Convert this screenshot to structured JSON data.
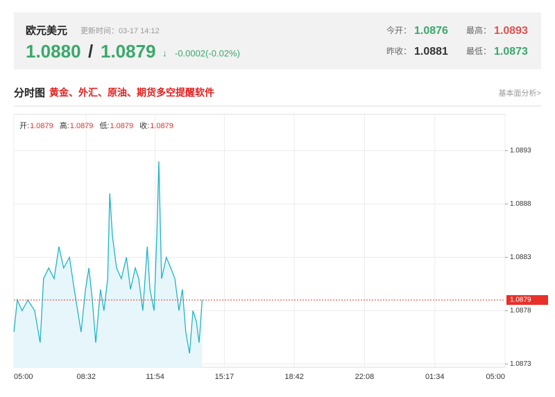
{
  "header": {
    "title": "欧元美元",
    "update_time": "更新时间：03-17 14:12",
    "bid": "1.0880",
    "separator": "/",
    "ask": "1.0879",
    "arrow": "↓",
    "change": "-0.0002(-0.02%)",
    "stats": [
      {
        "label": "今开：",
        "value": "1.0876"
      },
      {
        "label": "最高：",
        "value": "1.0893"
      },
      {
        "label": "昨收：",
        "value": "1.0881"
      },
      {
        "label": "最低：",
        "value": "1.0873"
      }
    ]
  },
  "section": {
    "tab": "分时图",
    "promo": "黄金、外汇、原油、期货多空提醒软件",
    "link": "基本面分析>"
  },
  "chart_data": {
    "type": "line",
    "ohlc": [
      {
        "label": "开:",
        "value": "1.0879"
      },
      {
        "label": "高:",
        "value": "1.0879"
      },
      {
        "label": "低:",
        "value": "1.0879"
      },
      {
        "label": "收:",
        "value": "1.0879"
      }
    ],
    "x": [
      0,
      10,
      24,
      41,
      61,
      77,
      87,
      102,
      118,
      132,
      146,
      163,
      177,
      187,
      197,
      210,
      220,
      230,
      240,
      254,
      264,
      275,
      281,
      289,
      301,
      315,
      330,
      342,
      356,
      366,
      378,
      391,
      399,
      411,
      419,
      425,
      433,
      447,
      460,
      472,
      484,
      494,
      504,
      515,
      525,
      535,
      543,
      552
    ],
    "series": [
      {
        "color": "#1fb3c8",
        "values": [
          1.0876,
          1.0879,
          1.0878,
          1.0879,
          1.0878,
          1.0875,
          1.0881,
          1.0882,
          1.0881,
          1.0884,
          1.0882,
          1.0883,
          1.088,
          1.0878,
          1.0876,
          1.088,
          1.0882,
          1.0879,
          1.0875,
          1.088,
          1.0878,
          1.0881,
          1.0889,
          1.0885,
          1.0882,
          1.0881,
          1.0883,
          1.088,
          1.0882,
          1.0881,
          1.0878,
          1.0884,
          1.088,
          1.0878,
          1.0885,
          1.0892,
          1.0881,
          1.0883,
          1.0882,
          1.0881,
          1.0878,
          1.088,
          1.0876,
          1.0874,
          1.0878,
          1.0877,
          1.0875,
          1.0879
        ]
      }
    ],
    "xlim": [
      0,
      1440
    ],
    "xticks": [
      {
        "value": 0,
        "label": "05:00"
      },
      {
        "value": 212,
        "label": "08:32"
      },
      {
        "value": 414,
        "label": "11:54"
      },
      {
        "value": 617,
        "label": "15:17"
      },
      {
        "value": 822,
        "label": "18:42"
      },
      {
        "value": 1028,
        "label": "22:08"
      },
      {
        "value": 1234,
        "label": "01:34"
      },
      {
        "value": 1440,
        "label": "05:00"
      }
    ],
    "ylim": [
      1.08727,
      1.08964
    ],
    "yticks": [
      1.0873,
      1.0878,
      1.0883,
      1.0888,
      1.0893
    ],
    "reference_line": 1.0879,
    "reference_color": "#e8302a",
    "grid": true
  }
}
